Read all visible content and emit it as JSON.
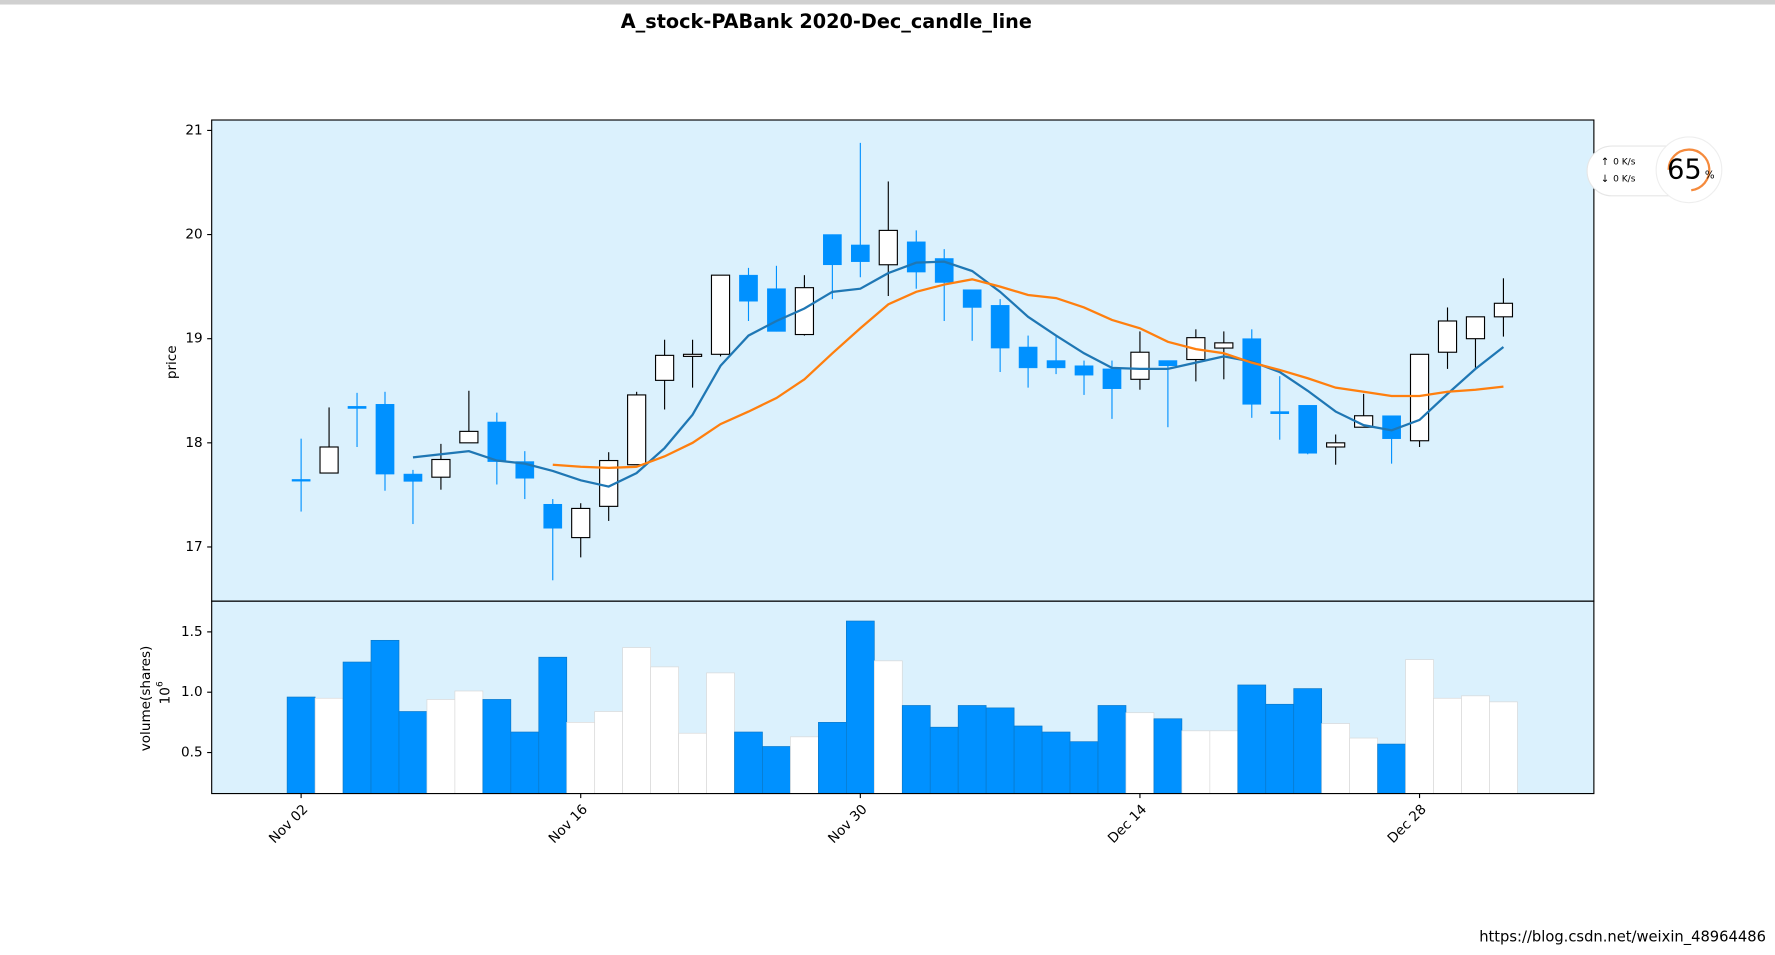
{
  "chart_data": {
    "type": "candlestick",
    "title": "A_stock-PABank 2020-Dec_candle_line",
    "categories": [
      "Nov 02",
      null,
      null,
      null,
      null,
      null,
      null,
      null,
      null,
      null,
      "Nov 16",
      null,
      null,
      null,
      null,
      null,
      null,
      null,
      null,
      null,
      "Nov 30",
      null,
      null,
      null,
      null,
      null,
      null,
      null,
      null,
      null,
      "Dec 14",
      null,
      null,
      null,
      null,
      null,
      null,
      null,
      null,
      null,
      "Dec 28",
      null,
      null,
      null
    ],
    "open": [
      17.64,
      17.71,
      18.35,
      18.37,
      17.7,
      17.67,
      18.0,
      18.2,
      17.82,
      17.41,
      17.09,
      17.39,
      17.79,
      18.6,
      18.83,
      18.85,
      19.61,
      19.48,
      19.04,
      20.0,
      19.9,
      19.71,
      19.93,
      19.77,
      19.47,
      19.32,
      18.92,
      18.79,
      18.74,
      18.71,
      18.61,
      18.79,
      18.8,
      18.91,
      19.0,
      18.3,
      18.36,
      17.96,
      18.15,
      18.26,
      18.02,
      18.87,
      19.0,
      19.21
    ],
    "high": [
      18.04,
      18.34,
      18.48,
      18.49,
      17.74,
      17.99,
      18.5,
      18.29,
      17.92,
      17.46,
      17.42,
      17.91,
      18.49,
      18.99,
      18.99,
      19.61,
      19.68,
      19.7,
      19.61,
      20.0,
      20.88,
      20.51,
      20.04,
      19.86,
      19.47,
      19.38,
      19.03,
      19.03,
      18.79,
      18.79,
      19.07,
      18.79,
      19.09,
      19.07,
      19.09,
      18.64,
      18.36,
      18.08,
      18.47,
      18.26,
      18.85,
      19.3,
      19.21,
      19.58
    ],
    "low": [
      17.34,
      17.71,
      17.96,
      17.54,
      17.22,
      17.55,
      18.0,
      17.6,
      17.46,
      16.68,
      16.9,
      17.25,
      17.79,
      18.32,
      18.53,
      18.83,
      19.17,
      19.07,
      19.03,
      19.38,
      19.59,
      19.41,
      19.48,
      19.17,
      18.98,
      18.68,
      18.53,
      18.66,
      18.46,
      18.23,
      18.51,
      18.15,
      18.59,
      18.61,
      18.24,
      18.03,
      17.89,
      17.79,
      18.15,
      17.8,
      17.96,
      18.71,
      18.72,
      19.02
    ],
    "close": [
      17.63,
      17.96,
      18.33,
      17.7,
      17.63,
      17.84,
      18.11,
      17.82,
      17.66,
      17.18,
      17.37,
      17.83,
      18.46,
      18.84,
      18.85,
      19.61,
      19.36,
      19.07,
      19.49,
      19.71,
      19.74,
      20.04,
      19.64,
      19.54,
      19.3,
      18.91,
      18.72,
      18.72,
      18.65,
      18.52,
      18.87,
      18.74,
      19.01,
      18.96,
      18.37,
      18.28,
      17.9,
      18.0,
      18.26,
      18.04,
      18.85,
      19.17,
      19.21,
      19.34
    ],
    "volume": [
      0.96,
      0.95,
      1.25,
      1.43,
      0.84,
      0.94,
      1.01,
      0.94,
      0.67,
      1.29,
      0.75,
      0.84,
      1.37,
      1.21,
      0.66,
      1.16,
      0.67,
      0.55,
      0.63,
      0.75,
      1.59,
      1.26,
      0.89,
      0.71,
      0.89,
      0.87,
      0.72,
      0.67,
      0.59,
      0.89,
      0.83,
      0.78,
      0.68,
      0.68,
      1.06,
      0.9,
      1.03,
      0.74,
      0.62,
      0.57,
      1.27,
      0.95,
      0.97,
      0.92
    ],
    "ma_lines": [
      {
        "color": "#1f77b4",
        "values": [
          null,
          null,
          null,
          null,
          17.86,
          17.89,
          17.92,
          17.83,
          17.8,
          17.73,
          17.64,
          17.58,
          17.71,
          17.95,
          18.27,
          18.74,
          19.03,
          19.17,
          19.29,
          19.45,
          19.48,
          19.63,
          19.73,
          19.74,
          19.65,
          19.45,
          19.21,
          19.03,
          18.86,
          18.72,
          18.71,
          18.71,
          18.77,
          18.83,
          18.78,
          18.68,
          18.5,
          18.3,
          18.17,
          18.12,
          18.22,
          18.47,
          18.71,
          18.92
        ]
      },
      {
        "color": "#ff7f0e",
        "values": [
          null,
          null,
          null,
          null,
          null,
          null,
          null,
          null,
          null,
          17.79,
          17.77,
          17.76,
          17.77,
          17.87,
          18.0,
          18.18,
          18.3,
          18.43,
          18.61,
          18.86,
          19.1,
          19.33,
          19.45,
          19.52,
          19.57,
          19.5,
          19.42,
          19.39,
          19.3,
          19.18,
          19.1,
          18.97,
          18.9,
          18.86,
          18.77,
          18.7,
          18.62,
          18.53,
          18.49,
          18.45,
          18.45,
          18.49,
          18.51,
          18.54
        ]
      }
    ],
    "up_color": "#ffffff",
    "up_edge": "#000000",
    "down_color": "#0091ff",
    "down_edge": "#0091ff",
    "background": "#dbf1fd",
    "ylabel": "price",
    "ylim": [
      16.48,
      21.1
    ],
    "yticks": [
      17,
      18,
      19,
      20,
      21
    ],
    "volume_ylabel": "volume(shares)",
    "volume_offset": {
      "base": "10",
      "exponent": "6"
    },
    "volume_ylim": [
      0.16,
      1.755
    ],
    "volume_yticks": [
      0.5,
      {
        "value": 1.0,
        "label": "1.0"
      },
      1.5
    ]
  },
  "overlay": {
    "upload": "0 K/s",
    "download": "0 K/s",
    "percent": "65",
    "percent_unit": "%"
  },
  "watermark": "https://blog.csdn.net/weixin_48964486"
}
